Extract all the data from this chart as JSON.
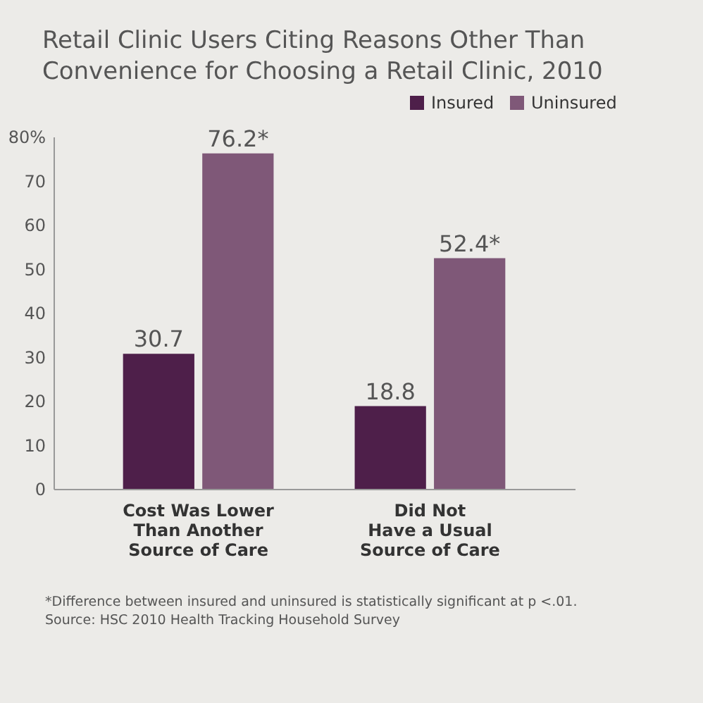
{
  "chart_data": {
    "type": "bar",
    "title": "Retail Clinic Users Citing Reasons Other Than Convenience for Choosing a Retail Clinic, 2010",
    "categories": [
      "Cost Was Lower\nThan Another\nSource of Care",
      "Did Not\nHave a Usual\nSource of Care"
    ],
    "series": [
      {
        "name": "Insured",
        "color": "#4e1f4a",
        "values": [
          30.7,
          18.8
        ],
        "value_labels": [
          "30.7",
          "18.8"
        ]
      },
      {
        "name": "Uninsured",
        "color": "#7f5878",
        "values": [
          76.2,
          52.4
        ],
        "value_labels": [
          "76.2*",
          "52.4*"
        ]
      }
    ],
    "ylim": [
      0,
      80
    ],
    "yticks": [
      0,
      10,
      20,
      30,
      40,
      50,
      60,
      70,
      {
        "value": 80,
        "label": "80%"
      }
    ],
    "grid": false,
    "legend": "top right",
    "annotations": [
      "*Difference between insured and uninsured is statistically significant at p <.01.",
      "Source: HSC 2010 Health Tracking Household Survey"
    ]
  }
}
